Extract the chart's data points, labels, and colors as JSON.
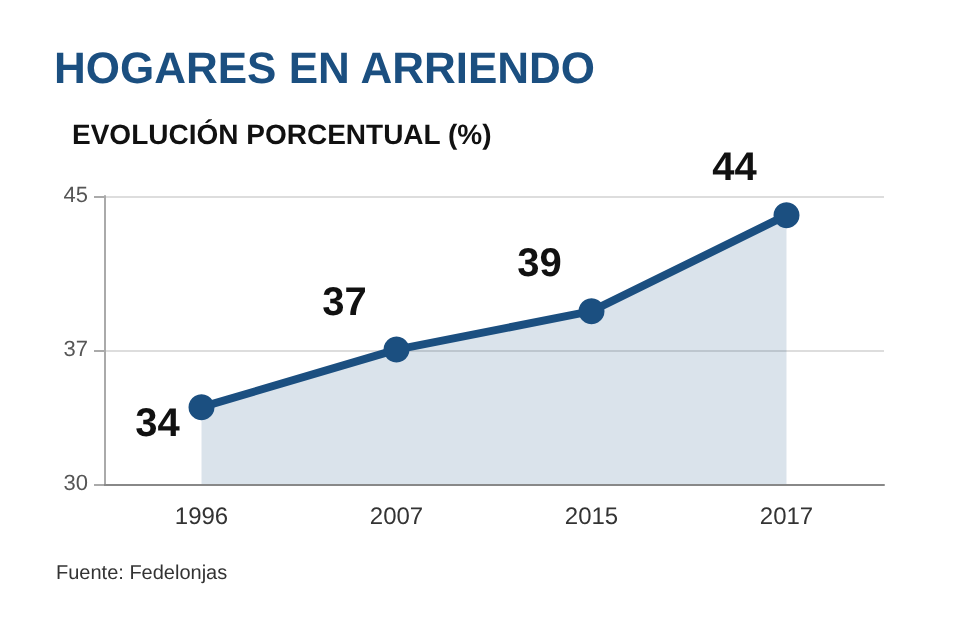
{
  "chart_data": {
    "type": "area",
    "title": "HOGARES EN ARRIENDO",
    "ylabel": "EVOLUCIÓN PORCENTUAL (%)",
    "categories": [
      "1996",
      "2007",
      "2015",
      "2017"
    ],
    "series": [
      {
        "color": "#1b4f80",
        "values": [
          34,
          37,
          39,
          44
        ]
      }
    ],
    "ylim": [
      30,
      45
    ],
    "yticks": [
      30,
      37,
      45
    ],
    "grid": "y",
    "marker": "circle",
    "data_labels": true,
    "annotations": [
      "Fuente: Fedelonjas"
    ]
  }
}
